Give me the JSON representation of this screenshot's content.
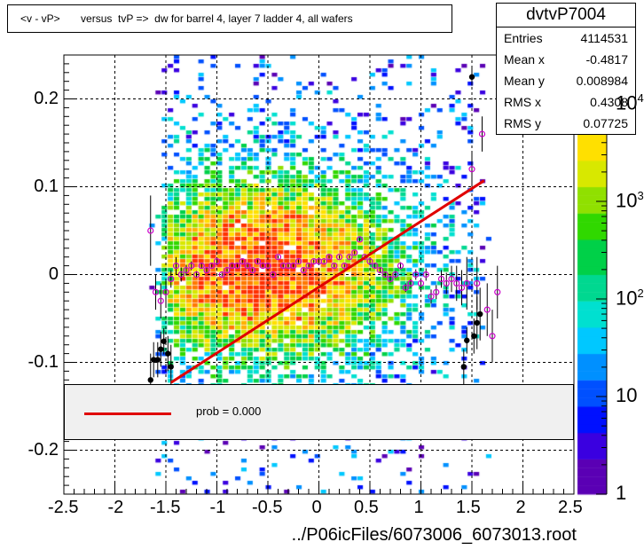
{
  "title": "<v - vP>       versus  tvP =>  dw for barrel 4, layer 7 ladder 4, all wafers",
  "stats": {
    "name": "dvtvP7004",
    "rows": [
      {
        "label": "Entries",
        "value": "4114531"
      },
      {
        "label": "Mean x",
        "value": "-0.4817"
      },
      {
        "label": "Mean y",
        "value": "0.008984"
      },
      {
        "label": "RMS x",
        "value": "0.4308"
      },
      {
        "label": "RMS y",
        "value": "0.07725"
      }
    ]
  },
  "fit_legend": {
    "text": "prob = 0.000",
    "color": "#e00000"
  },
  "x_title": "../P06icFiles/6073006_6073013.root",
  "colors": {
    "fit_line": "#e00000",
    "profile_open": "#cc00cc",
    "profile_filled": "#000000",
    "grid": "#000000"
  },
  "chart_data": {
    "type": "heatmap",
    "title": "<v - vP>       versus  tvP =>  dw for barrel 4, layer 7 ladder 4, all wafers",
    "xlabel": "../P06icFiles/6073006_6073013.root",
    "xlim": [
      -2.5,
      2.5
    ],
    "ylim": [
      -0.25,
      0.25
    ],
    "x_ticks": [
      -2.5,
      -2,
      -1.5,
      -1,
      -0.5,
      0,
      0.5,
      1,
      1.5,
      2,
      2.5
    ],
    "x_tick_labels": [
      "-2.5",
      "-2",
      "-1.5",
      "-1",
      "-0.5",
      "0",
      "0.5",
      "1",
      "1.5",
      "2",
      "2.5"
    ],
    "y_ticks": [
      -0.2,
      -0.1,
      0,
      0.1,
      0.2
    ],
    "y_tick_labels": [
      "-0.2",
      "-0.1",
      "0",
      "0.1",
      "0.2"
    ],
    "z_scale": "log",
    "z_tick_labels": [
      {
        "base": "1",
        "exp": ""
      },
      {
        "base": "10",
        "exp": ""
      },
      {
        "base": "10",
        "exp": "2"
      },
      {
        "base": "10",
        "exp": "3"
      },
      {
        "base": "10",
        "exp": "4"
      }
    ],
    "grid": true,
    "density": {
      "x_range": [
        -1.5,
        1.5
      ],
      "core_center": [
        -0.55,
        0.01
      ],
      "y_spread": 0.08
    },
    "fit": {
      "type": "linear",
      "x": [
        -1.45,
        1.62
      ],
      "y": [
        -0.123,
        0.107
      ]
    },
    "profile_open": {
      "x": [
        -1.65,
        -1.6,
        -1.55,
        -1.5,
        -1.45,
        -1.4,
        -1.35,
        -1.3,
        -1.25,
        -1.2,
        -1.15,
        -1.1,
        -1.05,
        -1.0,
        -0.95,
        -0.9,
        -0.85,
        -0.8,
        -0.75,
        -0.7,
        -0.65,
        -0.6,
        -0.55,
        -0.5,
        -0.45,
        -0.4,
        -0.35,
        -0.3,
        -0.25,
        -0.2,
        -0.15,
        -0.1,
        -0.05,
        0.0,
        0.05,
        0.1,
        0.15,
        0.2,
        0.25,
        0.3,
        0.35,
        0.4,
        0.45,
        0.5,
        0.55,
        0.6,
        0.65,
        0.7,
        0.75,
        0.8,
        0.85,
        0.9,
        0.95,
        1.0,
        1.05,
        1.1,
        1.15,
        1.2,
        1.25,
        1.3,
        1.35,
        1.4,
        1.45,
        1.5,
        1.55,
        1.6,
        1.65,
        1.7,
        1.75
      ],
      "y": [
        0.05,
        -0.02,
        -0.03,
        -0.02,
        -0.005,
        0.01,
        0.0,
        0.005,
        0.01,
        0.0,
        0.01,
        0.005,
        0.01,
        0.015,
        0.0,
        0.005,
        0.01,
        0.01,
        0.015,
        0.01,
        0.005,
        0.015,
        0.01,
        0.01,
        0.0,
        0.02,
        0.01,
        0.01,
        0.01,
        0.015,
        0.005,
        0.01,
        0.015,
        0.015,
        0.015,
        0.02,
        0.01,
        0.02,
        0.01,
        0.02,
        0.025,
        0.04,
        0.02,
        0.015,
        0.01,
        0.005,
        0.0,
        -0.005,
        0.0,
        0.01,
        -0.015,
        -0.01,
        0.0,
        -0.01,
        0.0,
        -0.025,
        -0.02,
        -0.005,
        -0.01,
        -0.005,
        -0.01,
        -0.015,
        -0.01,
        0.12,
        -0.01,
        0.16,
        -0.04,
        -0.07,
        -0.02
      ],
      "yerr": [
        0.04,
        0.02,
        0.02,
        0.015,
        0.01,
        0.01,
        0.008,
        0.006,
        0.005,
        0.004,
        0.003,
        0.003,
        0.002,
        0.002,
        0.002,
        0.002,
        0.002,
        0.002,
        0.002,
        0.002,
        0.002,
        0.002,
        0.002,
        0.002,
        0.002,
        0.002,
        0.002,
        0.002,
        0.002,
        0.002,
        0.002,
        0.002,
        0.002,
        0.002,
        0.002,
        0.002,
        0.002,
        0.002,
        0.002,
        0.002,
        0.002,
        0.002,
        0.002,
        0.003,
        0.003,
        0.003,
        0.003,
        0.004,
        0.004,
        0.004,
        0.005,
        0.005,
        0.006,
        0.006,
        0.007,
        0.008,
        0.008,
        0.01,
        0.012,
        0.015,
        0.02,
        0.02,
        0.03,
        0.02,
        0.03,
        0.02,
        0.03,
        0.03,
        0.03
      ]
    },
    "profile_filled": {
      "x": [
        -1.65,
        -1.62,
        -1.58,
        -1.55,
        -1.52,
        -1.48,
        -1.45,
        1.42,
        1.45,
        1.52,
        1.55,
        1.58,
        1.5
      ],
      "y": [
        -0.12,
        -0.097,
        -0.097,
        -0.085,
        -0.076,
        -0.09,
        -0.105,
        -0.105,
        -0.075,
        -0.07,
        -0.055,
        -0.045,
        0.225
      ],
      "yerr": [
        0.03,
        0.02,
        0.02,
        0.02,
        0.015,
        0.02,
        0.025,
        0.02,
        0.015,
        0.02,
        0.03,
        0.03,
        0.01
      ]
    }
  }
}
